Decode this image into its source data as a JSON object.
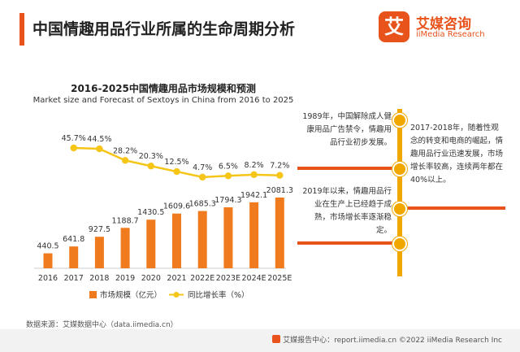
{
  "header": {
    "title": "中国情趣用品行业所属的生命周期分析"
  },
  "logo": {
    "mark": "艾",
    "name_cn": "艾媒咨询",
    "name_en": "iiMedia Research"
  },
  "timeline": {
    "events": [
      {
        "text": "1989年，中国解除成人健康用品广告禁令，情趣用品行业初步发展。"
      },
      {
        "text": "2017-2018年，随着性观念的转变和电商的崛起，情趣用品行业迅速发展，市场增长率较高，连续两年都在40%以上。"
      },
      {
        "text": "2019年以来，情趣用品行业在生产上已经趋于成熟，市场增长率逐渐稳定。"
      }
    ]
  },
  "source": "数据来源：艾媒数据中心（data.iimedia.cn）",
  "footer": "艾媒报告中心：report.iimedia.cn  ©2022  iiMedia Research Inc",
  "colors": {
    "bar": "#f07b1f",
    "line": "#f5c518",
    "accent": "#e8521b",
    "timeline": "#f0a800"
  },
  "chart_data": {
    "type": "bar+line",
    "title": "2016-2025中国情趣用品市场规模和预测",
    "subtitle": "Market size and Forecast of Sextoys in China from 2016 to 2025",
    "categories": [
      "2016",
      "2017",
      "2018",
      "2019",
      "2020",
      "2021",
      "2022E",
      "2023E",
      "2024E",
      "2025E"
    ],
    "series": [
      {
        "name": "市场规模（亿元）",
        "type": "bar",
        "values": [
          440.5,
          641.8,
          927.5,
          1188.7,
          1430.5,
          1609.6,
          1685.3,
          1794.3,
          1942.1,
          2081.3
        ],
        "labels": [
          "440.5",
          "641.8",
          "927.5",
          "1188.7",
          "1430.5",
          "1609.6",
          "1685.3",
          "1794.3",
          "1942.1",
          "2081.3"
        ]
      },
      {
        "name": "同比增长率（%）",
        "type": "line",
        "values": [
          null,
          45.7,
          44.5,
          28.2,
          20.3,
          12.5,
          4.7,
          6.5,
          8.2,
          7.2
        ],
        "labels": [
          "",
          "45.7%",
          "44.5%",
          "28.2%",
          "20.3%",
          "12.5%",
          "4.7%",
          "6.5%",
          "8.2%",
          "7.2%"
        ]
      }
    ],
    "legend_position": "bottom",
    "grid": false
  }
}
